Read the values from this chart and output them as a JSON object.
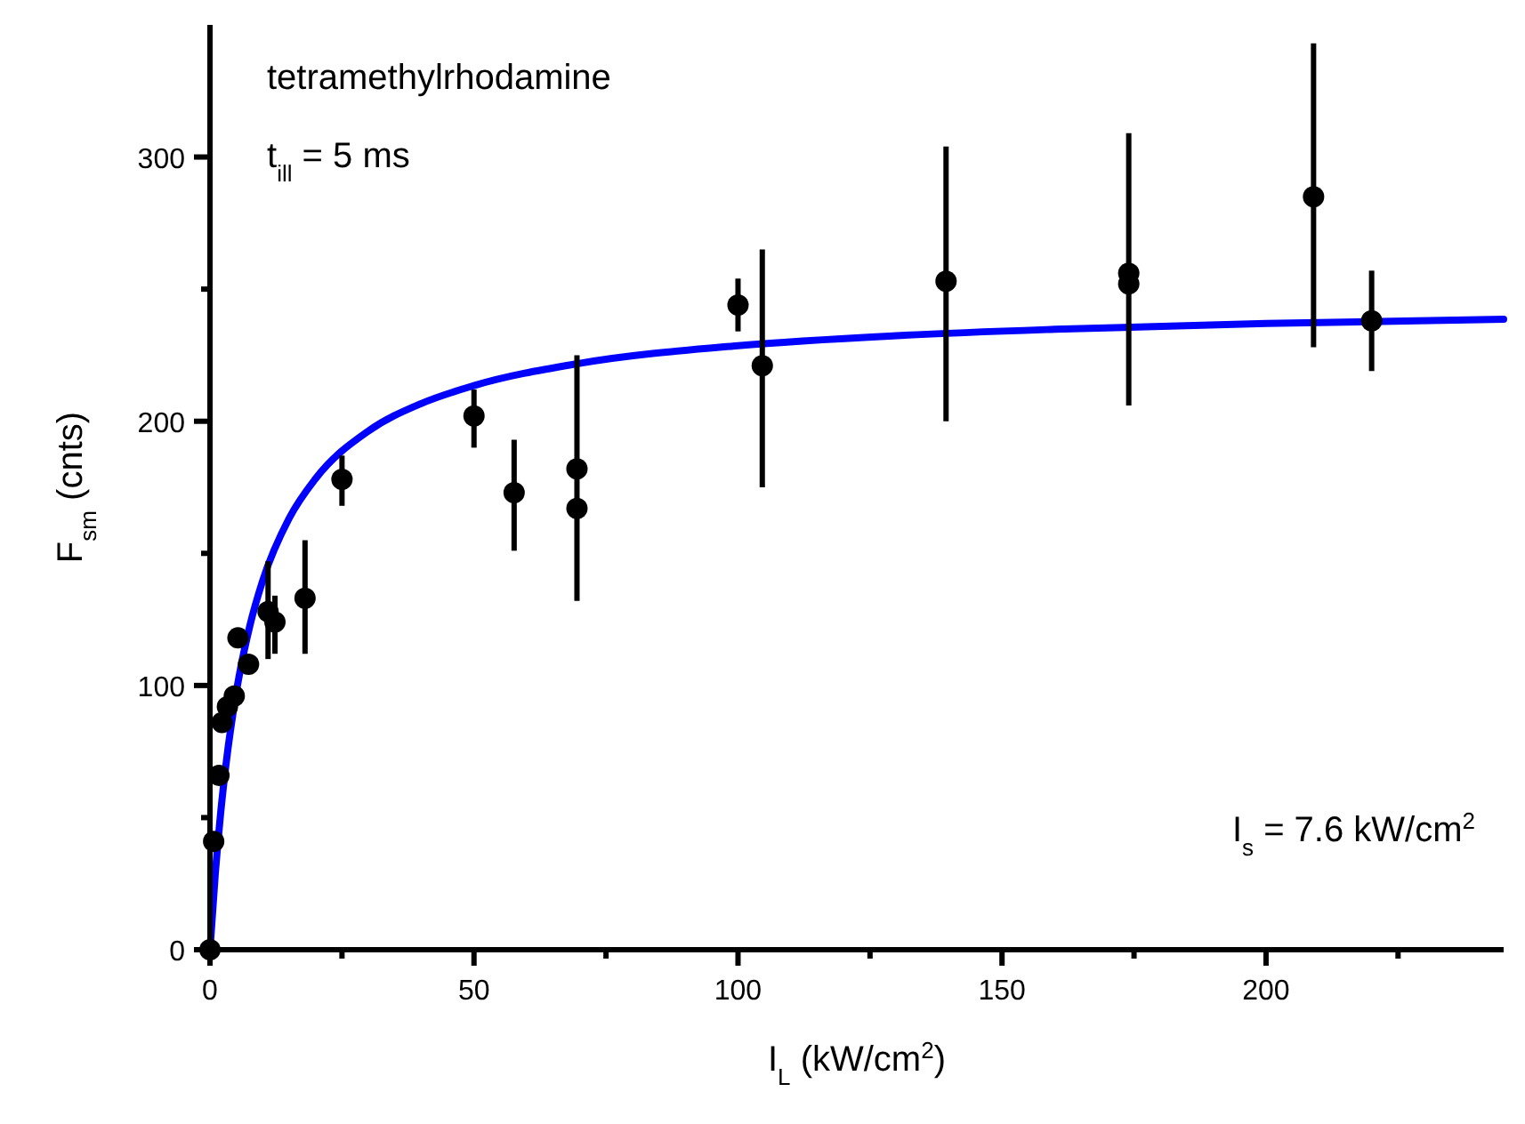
{
  "chart_data": {
    "type": "scatter",
    "xlabel": "I$_{L}$ (kW/cm$^{2}$)",
    "ylabel": "F$_{sm}$ (cnts)",
    "xlim": [
      0,
      245
    ],
    "ylim": [
      0,
      350
    ],
    "xticks": [
      0,
      {
        "value": 25,
        "label": null
      },
      50,
      {
        "value": 75,
        "label": null
      },
      100,
      {
        "value": 125,
        "label": null
      },
      150,
      {
        "value": 175,
        "label": null
      },
      200,
      {
        "value": 225,
        "label": null
      }
    ],
    "yticks": [
      0,
      {
        "value": 50,
        "label": null
      },
      100,
      {
        "value": 150,
        "label": null
      },
      200,
      {
        "value": 250,
        "label": null
      },
      300
    ],
    "marker": "circle",
    "grid": false,
    "annotations": [
      "tetramethylrhodamine",
      "t$_{ill}$ = 5 ms",
      "I$_{s}$ =  7.6 kW/cm$^{2}$"
    ],
    "series": [
      {
        "color": "#000000",
        "x": [
          0,
          0.7,
          1.7,
          2.3,
          3.3,
          4.6,
          5.3,
          7.3,
          11,
          12.3,
          18,
          25,
          50,
          57.6,
          69.5,
          69.5,
          100,
          104.6,
          139.4,
          174,
          174,
          209,
          220
        ],
        "values": [
          0,
          41,
          66,
          86,
          92,
          96,
          118,
          108,
          128,
          124,
          133,
          178,
          202,
          173,
          182,
          167,
          244,
          221,
          253,
          256,
          252,
          285,
          238
        ],
        "errors": [
          null,
          null,
          null,
          null,
          null,
          null,
          null,
          null,
          [
            110,
            147
          ],
          [
            112,
            134
          ],
          [
            112,
            155
          ],
          [
            168,
            187
          ],
          [
            190,
            212
          ],
          [
            151,
            193
          ],
          null,
          [
            132,
            225
          ],
          [
            234,
            254
          ],
          [
            175,
            265
          ],
          [
            200,
            304
          ],
          [
            206,
            309
          ],
          null,
          [
            228,
            343
          ],
          [
            219,
            257
          ]
        ]
      },
      {
        "type": "line",
        "color": "#0000ff",
        "marker": "none",
        "line_style": "solid",
        "x": [
          0,
          1,
          2,
          3,
          5,
          7.6,
          10,
          15,
          20,
          30,
          40,
          50,
          70,
          100,
          130,
          160,
          200,
          245
        ],
        "values": [
          0,
          28.6,
          51.3,
          69.6,
          97.6,
          123,
          139.8,
          163.3,
          178.3,
          196.3,
          206.7,
          213.5,
          221.9,
          228.6,
          232.4,
          234.8,
          237,
          238.6
        ]
      }
    ]
  }
}
